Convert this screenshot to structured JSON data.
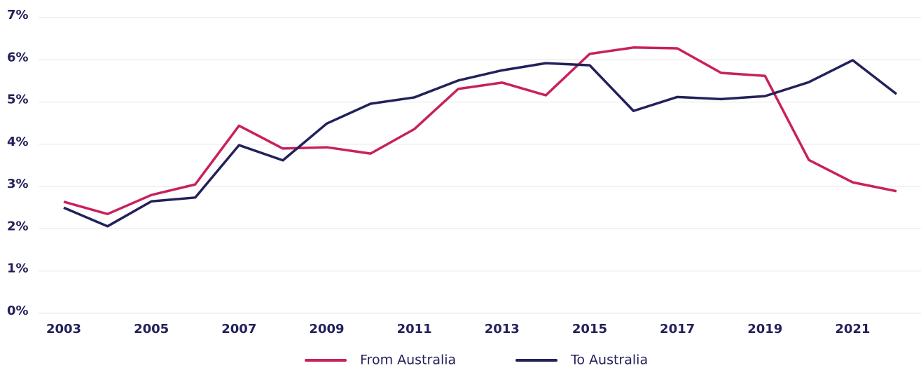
{
  "chart_data": {
    "type": "line",
    "x": [
      2003,
      2004,
      2005,
      2006,
      2007,
      2008,
      2009,
      2010,
      2011,
      2012,
      2013,
      2014,
      2015,
      2016,
      2017,
      2018,
      2019,
      2020,
      2021,
      2022
    ],
    "series": [
      {
        "name": "From Australia",
        "color": "#c8215d",
        "values": [
          2.64,
          2.35,
          2.8,
          3.05,
          4.44,
          3.9,
          3.93,
          3.78,
          4.36,
          5.31,
          5.46,
          5.16,
          6.14,
          6.29,
          6.27,
          5.69,
          5.62,
          3.63,
          3.1,
          2.89
        ]
      },
      {
        "name": "To Australia",
        "color": "#23215a",
        "values": [
          2.5,
          2.06,
          2.65,
          2.74,
          3.98,
          3.62,
          4.49,
          4.96,
          5.11,
          5.51,
          5.75,
          5.92,
          5.87,
          4.79,
          5.12,
          5.07,
          5.14,
          5.47,
          5.99,
          5.19
        ]
      }
    ],
    "xlim": [
      2003,
      2022
    ],
    "xticks": [
      2003,
      2005,
      2007,
      2009,
      2011,
      2013,
      2015,
      2017,
      2019,
      2021
    ],
    "ylim": [
      0,
      7
    ],
    "yticks": [
      {
        "value": 0,
        "label": "0%"
      },
      {
        "value": 1,
        "label": "1%"
      },
      {
        "value": 2,
        "label": "2%"
      },
      {
        "value": 3,
        "label": "3%"
      },
      {
        "value": 4,
        "label": "4%"
      },
      {
        "value": 5,
        "label": "5%"
      },
      {
        "value": 6,
        "label": "6%"
      },
      {
        "value": 7,
        "label": "7%"
      }
    ],
    "grid": true,
    "legend": "bottom"
  }
}
